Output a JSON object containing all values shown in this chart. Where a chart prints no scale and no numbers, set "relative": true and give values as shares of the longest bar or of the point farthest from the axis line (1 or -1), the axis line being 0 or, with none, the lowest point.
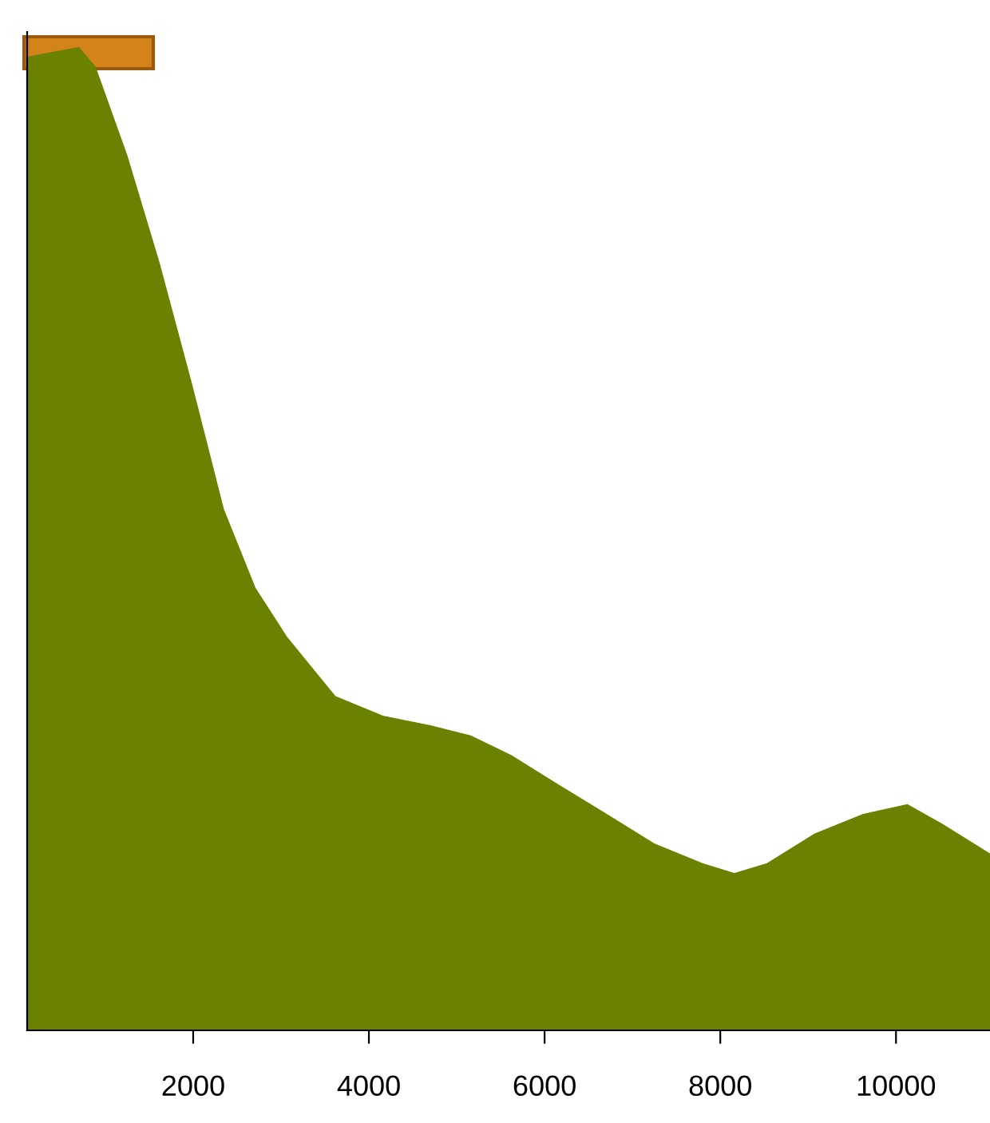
{
  "chart_data": {
    "type": "area",
    "relative": true,
    "x": [
      110,
      700,
      890,
      1250,
      1620,
      1980,
      2350,
      2710,
      3070,
      3620,
      4160,
      4710,
      5160,
      5620,
      6160,
      6710,
      7250,
      7800,
      8160,
      8530,
      9070,
      9620,
      10130,
      10530,
      11070
    ],
    "series": [
      {
        "color": "#6b8200",
        "values": [
          0.99,
          1,
          0.98,
          0.89,
          0.78,
          0.66,
          0.53,
          0.45,
          0.4,
          0.34,
          0.32,
          0.31,
          0.3,
          0.28,
          0.25,
          0.22,
          0.19,
          0.17,
          0.16,
          0.17,
          0.2,
          0.22,
          0.23,
          0.21,
          0.18
        ]
      }
    ],
    "xlim": [
      110,
      11070
    ],
    "xticks": [
      2000,
      4000,
      6000,
      8000,
      10000
    ],
    "grid": false,
    "legend": false
  }
}
